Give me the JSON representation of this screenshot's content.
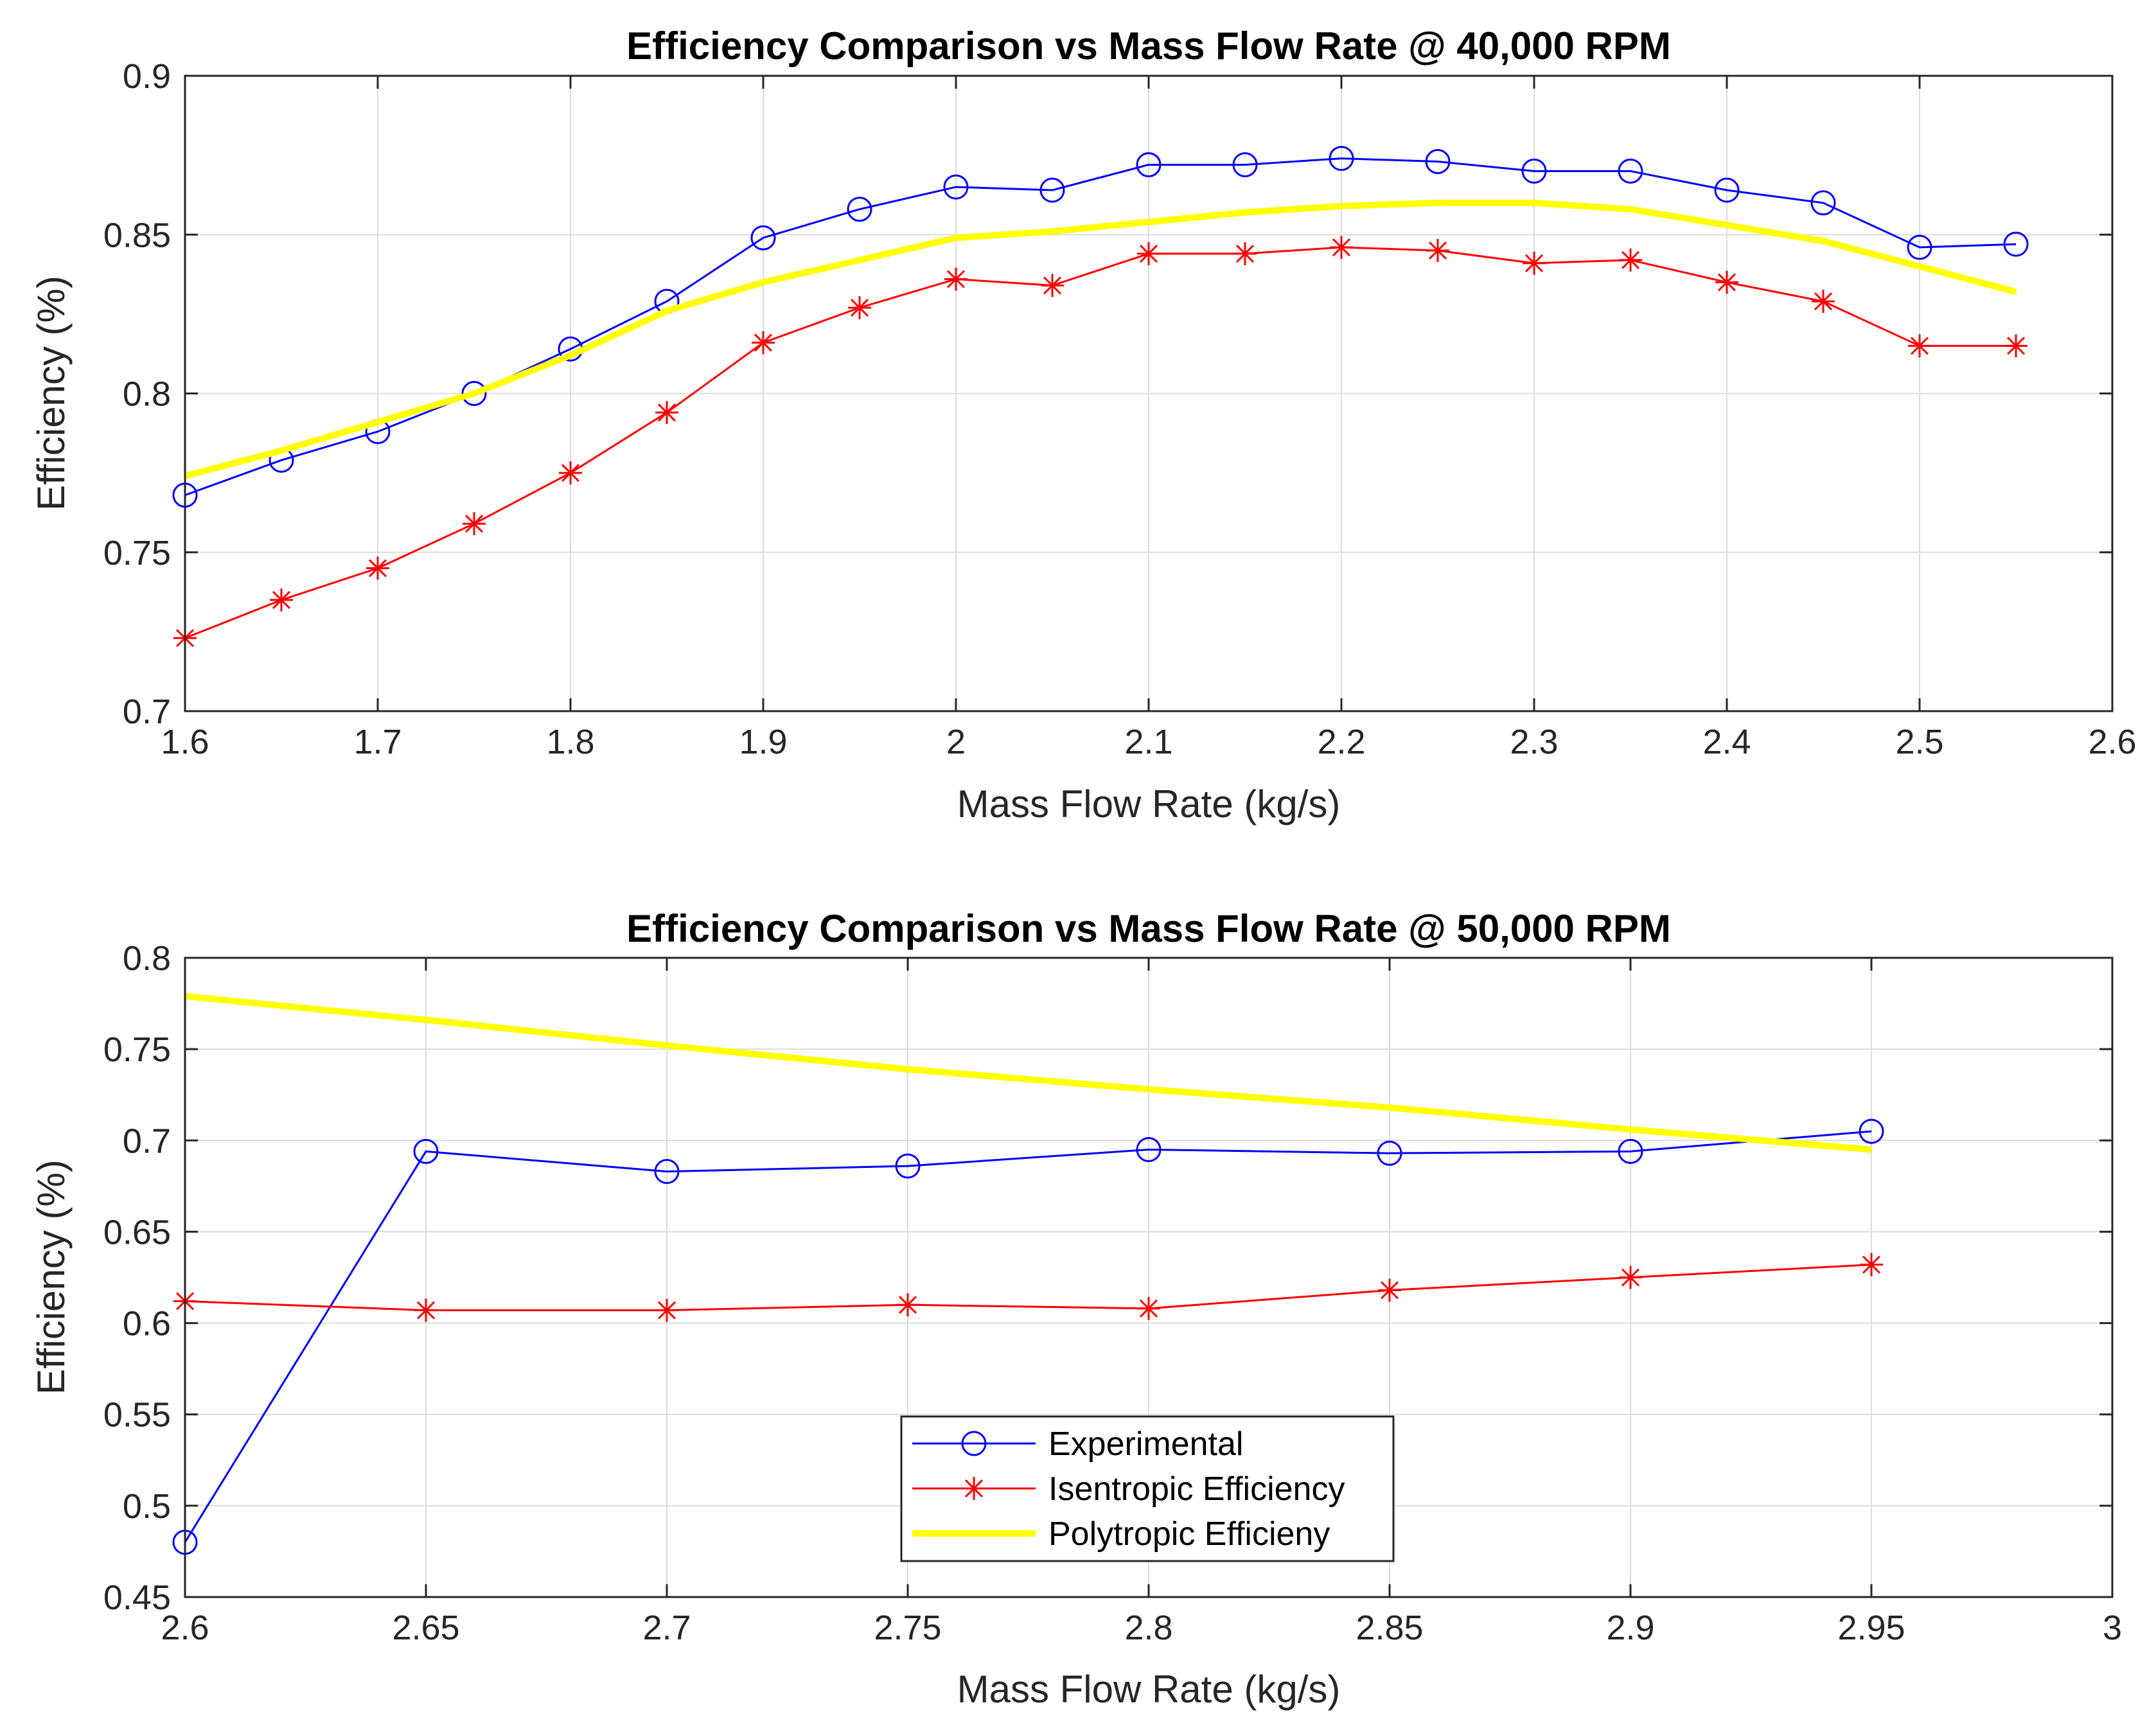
{
  "chart_data": [
    {
      "type": "line",
      "title": "Efficiency Comparison vs Mass Flow Rate @ 40,000 RPM",
      "xlabel": "Mass Flow Rate (kg/s)",
      "ylabel": "Efficiency (%)",
      "xlim": [
        1.6,
        2.6
      ],
      "ylim": [
        0.7,
        0.9
      ],
      "xticks": [
        1.6,
        1.7,
        1.8,
        1.9,
        2.0,
        2.1,
        2.2,
        2.3,
        2.4,
        2.5,
        2.6
      ],
      "xtick_labels": [
        "1.6",
        "1.7",
        "1.8",
        "1.9",
        "2",
        "2.1",
        "2.2",
        "2.3",
        "2.4",
        "2.5",
        "2.6"
      ],
      "yticks": [
        0.7,
        0.75,
        0.8,
        0.85,
        0.9
      ],
      "ytick_labels": [
        "0.7",
        "0.75",
        "0.8",
        "0.85",
        "0.9"
      ],
      "grid": true,
      "series": [
        {
          "name": "Experimental",
          "color": "#0000ff",
          "marker": "circle",
          "line_width": "thin",
          "x": [
            1.6,
            1.65,
            1.7,
            1.75,
            1.8,
            1.85,
            1.9,
            1.95,
            2.0,
            2.05,
            2.1,
            2.15,
            2.2,
            2.25,
            2.3,
            2.35,
            2.4,
            2.45,
            2.5,
            2.55
          ],
          "y": [
            0.768,
            0.779,
            0.788,
            0.8,
            0.814,
            0.829,
            0.849,
            0.858,
            0.865,
            0.864,
            0.872,
            0.872,
            0.874,
            0.873,
            0.87,
            0.87,
            0.864,
            0.86,
            0.846,
            0.847
          ]
        },
        {
          "name": "Isentropic Efficiency",
          "color": "#ff0000",
          "marker": "asterisk",
          "line_width": "thin",
          "x": [
            1.6,
            1.65,
            1.7,
            1.75,
            1.8,
            1.85,
            1.9,
            1.95,
            2.0,
            2.05,
            2.1,
            2.15,
            2.2,
            2.25,
            2.3,
            2.35,
            2.4,
            2.45,
            2.5,
            2.55
          ],
          "y": [
            0.723,
            0.735,
            0.745,
            0.759,
            0.775,
            0.794,
            0.816,
            0.827,
            0.836,
            0.834,
            0.844,
            0.844,
            0.846,
            0.845,
            0.841,
            0.842,
            0.835,
            0.829,
            0.815,
            0.815
          ]
        },
        {
          "name": "Polytropic Efficieny",
          "color": "#ffff00",
          "marker": "none",
          "line_width": "thick",
          "x": [
            1.6,
            1.65,
            1.7,
            1.75,
            1.8,
            1.85,
            1.9,
            1.95,
            2.0,
            2.05,
            2.1,
            2.15,
            2.2,
            2.25,
            2.3,
            2.35,
            2.4,
            2.45,
            2.5,
            2.55
          ],
          "y": [
            0.774,
            0.782,
            0.791,
            0.8,
            0.812,
            0.826,
            0.835,
            0.842,
            0.849,
            0.851,
            0.854,
            0.857,
            0.859,
            0.86,
            0.86,
            0.858,
            0.853,
            0.848,
            0.84,
            0.832
          ]
        }
      ]
    },
    {
      "type": "line",
      "title": "Efficiency Comparison vs Mass Flow Rate @ 50,000 RPM",
      "xlabel": "Mass Flow Rate (kg/s)",
      "ylabel": "Efficiency (%)",
      "xlim": [
        2.6,
        3.0
      ],
      "ylim": [
        0.45,
        0.8
      ],
      "xticks": [
        2.6,
        2.65,
        2.7,
        2.75,
        2.8,
        2.85,
        2.9,
        2.95,
        3.0
      ],
      "xtick_labels": [
        "2.6",
        "2.65",
        "2.7",
        "2.75",
        "2.8",
        "2.85",
        "2.9",
        "2.95",
        "3"
      ],
      "yticks": [
        0.45,
        0.5,
        0.55,
        0.6,
        0.65,
        0.7,
        0.75,
        0.8
      ],
      "ytick_labels": [
        "0.45",
        "0.5",
        "0.55",
        "0.6",
        "0.65",
        "0.7",
        "0.75",
        "0.8"
      ],
      "grid": true,
      "legend": {
        "location": "bottom-center",
        "entries": [
          "Experimental",
          "Isentropic Efficiency",
          "Polytropic Efficieny"
        ]
      },
      "series": [
        {
          "name": "Experimental",
          "color": "#0000ff",
          "marker": "circle",
          "line_width": "thin",
          "x": [
            2.6,
            2.65,
            2.7,
            2.75,
            2.8,
            2.85,
            2.9,
            2.95
          ],
          "y": [
            0.48,
            0.694,
            0.683,
            0.686,
            0.695,
            0.693,
            0.694,
            0.705
          ]
        },
        {
          "name": "Isentropic Efficiency",
          "color": "#ff0000",
          "marker": "asterisk",
          "line_width": "thin",
          "x": [
            2.6,
            2.65,
            2.7,
            2.75,
            2.8,
            2.85,
            2.9,
            2.95
          ],
          "y": [
            0.612,
            0.607,
            0.607,
            0.61,
            0.608,
            0.618,
            0.625,
            0.632
          ]
        },
        {
          "name": "Polytropic Efficieny",
          "color": "#ffff00",
          "marker": "none",
          "line_width": "thick",
          "x": [
            2.6,
            2.65,
            2.7,
            2.75,
            2.8,
            2.85,
            2.9,
            2.95
          ],
          "y": [
            0.779,
            0.766,
            0.752,
            0.739,
            0.728,
            0.718,
            0.706,
            0.695
          ]
        }
      ]
    }
  ]
}
